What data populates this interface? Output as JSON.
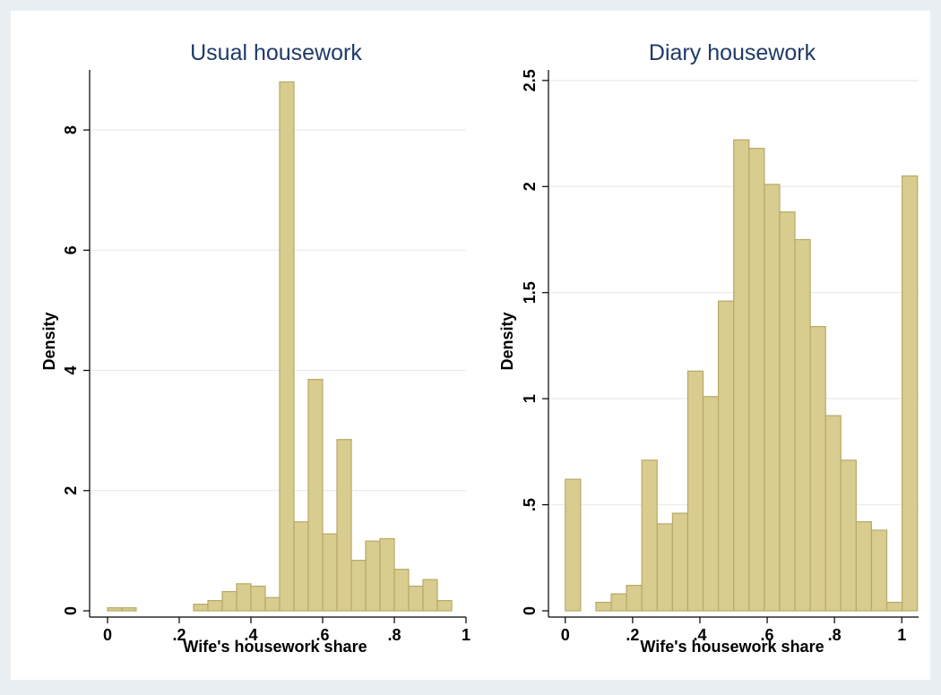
{
  "chart_data": [
    {
      "type": "bar",
      "title": "Usual housework",
      "xlabel": "Wife's housework share",
      "ylabel": "Density",
      "xlim": [
        -0.05,
        1.0
      ],
      "ylim": [
        0,
        9
      ],
      "x_ticks": [
        0,
        0.2,
        0.4,
        0.6,
        0.8,
        1
      ],
      "x_tick_labels": [
        "0",
        ".2",
        ".4",
        ".6",
        ".8",
        "1"
      ],
      "y_ticks": [
        0,
        2,
        4,
        6,
        8
      ],
      "y_tick_labels": [
        "0",
        "2",
        "4",
        "6",
        "8"
      ],
      "grid": true,
      "bin_width": 0.04,
      "bins": [
        {
          "x0": 0.0,
          "value": 0.05
        },
        {
          "x0": 0.04,
          "value": 0.05
        },
        {
          "x0": 0.24,
          "value": 0.11
        },
        {
          "x0": 0.28,
          "value": 0.17
        },
        {
          "x0": 0.32,
          "value": 0.32
        },
        {
          "x0": 0.36,
          "value": 0.45
        },
        {
          "x0": 0.4,
          "value": 0.41
        },
        {
          "x0": 0.44,
          "value": 0.22
        },
        {
          "x0": 0.48,
          "value": 8.8
        },
        {
          "x0": 0.52,
          "value": 1.48
        },
        {
          "x0": 0.56,
          "value": 3.85
        },
        {
          "x0": 0.6,
          "value": 1.28
        },
        {
          "x0": 0.64,
          "value": 2.85
        },
        {
          "x0": 0.68,
          "value": 0.84
        },
        {
          "x0": 0.72,
          "value": 1.16
        },
        {
          "x0": 0.76,
          "value": 1.2
        },
        {
          "x0": 0.8,
          "value": 0.69
        },
        {
          "x0": 0.84,
          "value": 0.41
        },
        {
          "x0": 0.88,
          "value": 0.52
        },
        {
          "x0": 0.92,
          "value": 0.17
        }
      ]
    },
    {
      "type": "bar",
      "title": "Diary housework",
      "xlabel": "Wife's housework share",
      "ylabel": "Density",
      "xlim": [
        -0.05,
        1.05
      ],
      "ylim": [
        0,
        2.55
      ],
      "x_ticks": [
        0,
        0.2,
        0.4,
        0.6,
        0.8,
        1
      ],
      "x_tick_labels": [
        "0",
        ".2",
        ".4",
        ".6",
        ".8",
        "1"
      ],
      "y_ticks": [
        0,
        0.5,
        1,
        1.5,
        2,
        2.5
      ],
      "y_tick_labels": [
        "0",
        ".5",
        "1",
        "1.5",
        "2",
        "2.5"
      ],
      "grid": true,
      "bin_width": 0.0455,
      "bins": [
        {
          "x0": 0.0,
          "value": 0.62
        },
        {
          "x0": 0.091,
          "value": 0.04
        },
        {
          "x0": 0.1365,
          "value": 0.08
        },
        {
          "x0": 0.182,
          "value": 0.12
        },
        {
          "x0": 0.2275,
          "value": 0.71
        },
        {
          "x0": 0.273,
          "value": 0.41
        },
        {
          "x0": 0.3185,
          "value": 0.46
        },
        {
          "x0": 0.364,
          "value": 1.13
        },
        {
          "x0": 0.4095,
          "value": 1.01
        },
        {
          "x0": 0.455,
          "value": 1.46
        },
        {
          "x0": 0.5005,
          "value": 2.22
        },
        {
          "x0": 0.546,
          "value": 2.18
        },
        {
          "x0": 0.5915,
          "value": 2.01
        },
        {
          "x0": 0.637,
          "value": 1.88
        },
        {
          "x0": 0.6825,
          "value": 1.75
        },
        {
          "x0": 0.728,
          "value": 1.34
        },
        {
          "x0": 0.7735,
          "value": 0.92
        },
        {
          "x0": 0.819,
          "value": 0.71
        },
        {
          "x0": 0.8645,
          "value": 0.42
        },
        {
          "x0": 0.91,
          "value": 0.38
        },
        {
          "x0": 0.9555,
          "value": 0.04
        },
        {
          "x0": 1.001,
          "value": 2.05
        }
      ]
    }
  ],
  "colors": {
    "background": "#e9eef2",
    "plot_background": "#ffffff",
    "bar_fill": "#d8cc8e",
    "bar_stroke": "#b7a968",
    "title": "#1f3a68",
    "grid": "#e7ecef"
  }
}
